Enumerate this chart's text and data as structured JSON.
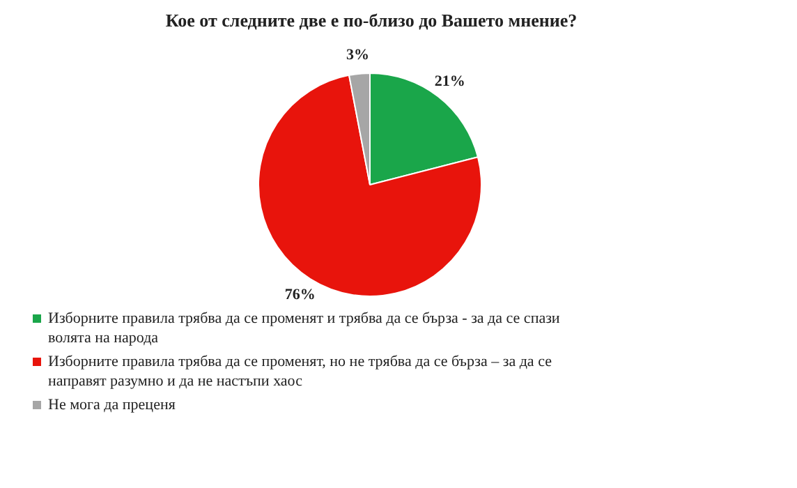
{
  "chart_data": {
    "type": "pie",
    "title": "Кое от следните две е по-близо до Вашето мнение?",
    "categories": [
      "Изборните правила трябва да се променят и трябва да се бърза - за да се спази волята на народа",
      "Изборните правила трябва да се променят, но не трябва да се бърза – за да се направят разумно и да не настъпи хаос",
      "Не мога да преценя"
    ],
    "values": [
      21,
      76,
      3
    ],
    "colors": [
      "#1aa64a",
      "#e8140c",
      "#a6a6a6"
    ],
    "value_labels": [
      "21%",
      "76%",
      "3%"
    ],
    "legend": "bottom"
  }
}
